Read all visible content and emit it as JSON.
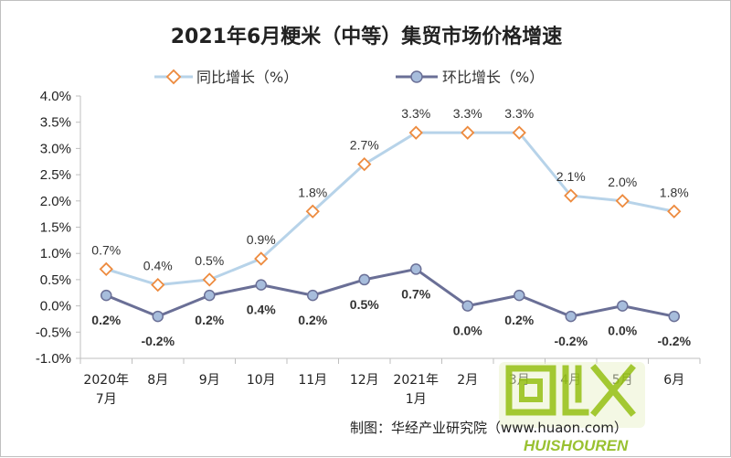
{
  "chart_data": {
    "type": "line",
    "title": "2021年6月粳米（中等）集贸市场价格增速",
    "categories": [
      [
        "2020年",
        "7月"
      ],
      [
        "8月"
      ],
      [
        "9月"
      ],
      [
        "10月"
      ],
      [
        "11月"
      ],
      [
        "12月"
      ],
      [
        "2021年",
        "1月"
      ],
      [
        "2月"
      ],
      [
        "3月"
      ],
      [
        "4月"
      ],
      [
        "5月"
      ],
      [
        "6月"
      ]
    ],
    "y_ticks": [
      "4.0%",
      "3.5%",
      "3.0%",
      "2.5%",
      "2.0%",
      "1.5%",
      "1.0%",
      "0.5%",
      "0.0%",
      "-0.5%",
      "-1.0%"
    ],
    "ylim": [
      -1.0,
      4.0
    ],
    "grid": false,
    "legend_position": "top",
    "series": [
      {
        "name": "同比增长（%）",
        "color": "#b7d3e9",
        "marker_color": "#ed8b3f",
        "marker": "diamond",
        "values": [
          0.7,
          0.4,
          0.5,
          0.9,
          1.8,
          2.7,
          3.3,
          3.3,
          3.3,
          2.1,
          2.0,
          1.8
        ],
        "labels": [
          "0.7%",
          "0.4%",
          "0.5%",
          "0.9%",
          "1.8%",
          "2.7%",
          "3.3%",
          "3.3%",
          "3.3%",
          "2.1%",
          "2.0%",
          "1.8%"
        ]
      },
      {
        "name": "环比增长（%）",
        "color": "#6a6f96",
        "marker_color": "#a7bddc",
        "marker": "circle",
        "values": [
          0.2,
          -0.2,
          0.2,
          0.4,
          0.2,
          0.5,
          0.7,
          0.0,
          0.2,
          -0.2,
          0.0,
          -0.2
        ],
        "labels": [
          "0.2%",
          "-0.2%",
          "0.2%",
          "0.4%",
          "0.2%",
          "0.5%",
          "0.7%",
          "0.0%",
          "0.2%",
          "-0.2%",
          "0.0%",
          "-0.2%"
        ]
      }
    ]
  },
  "credit": "制图：华经产业研究院（www.huaon.com）",
  "watermark": "HUISHOUREN"
}
